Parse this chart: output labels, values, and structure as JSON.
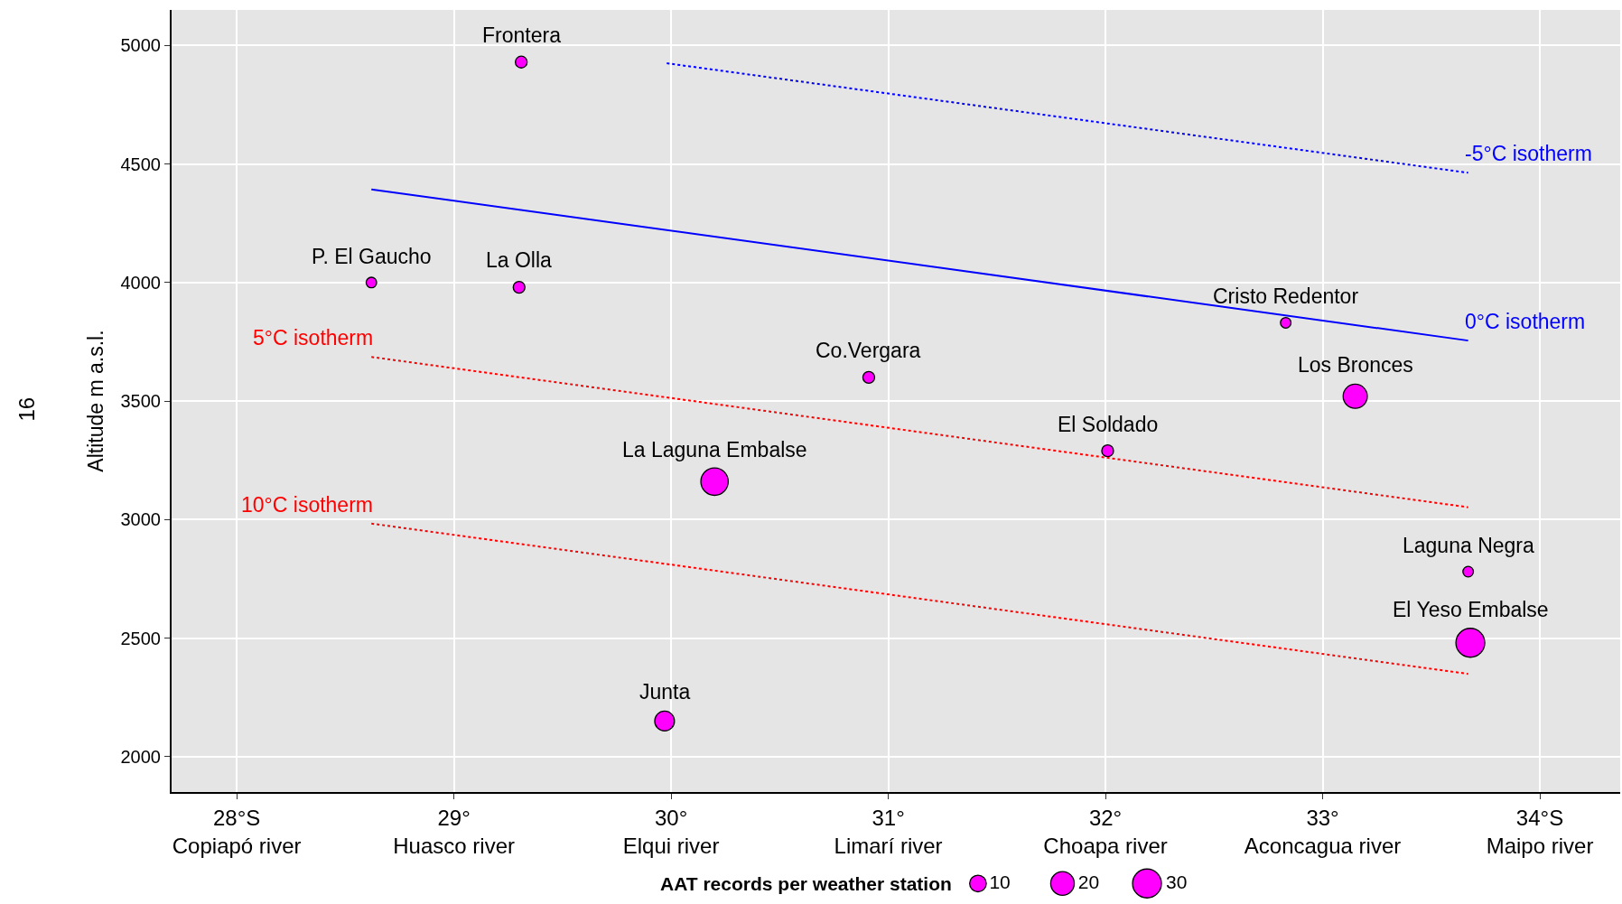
{
  "chart_data": {
    "type": "bubble",
    "ylabel": "Altitude m a.s.l.",
    "legend_title": "AAT records per weather station",
    "x": [
      29.31,
      28.62,
      29.3,
      30.91,
      32.83,
      33.15,
      32.01,
      30.2,
      33.67,
      33.68,
      29.97
    ],
    "series": [
      {
        "color": "#ff00ff",
        "values": [
          4930,
          4000,
          3980,
          3600,
          3830,
          3520,
          3290,
          3160,
          2780,
          2480,
          2150
        ],
        "sizes": [
          5,
          4,
          5,
          5,
          4,
          21,
          5,
          27,
          4,
          30,
          14
        ]
      },
      {
        "type": "line",
        "name": "-5°C isotherm",
        "color": "#0000ff",
        "line_style": "dotted",
        "x": [
          29.98,
          33.67
        ],
        "values": [
          4925,
          4463
        ]
      },
      {
        "type": "line",
        "name": "0°C isotherm",
        "color": "#0000ff",
        "line_style": "solid",
        "x": [
          28.62,
          33.67
        ],
        "values": [
          4393,
          3755
        ]
      },
      {
        "type": "line",
        "name": "5°C isotherm",
        "color": "#ff0000",
        "line_style": "dotted",
        "x": [
          28.62,
          33.67
        ],
        "values": [
          3686,
          3052
        ]
      },
      {
        "type": "line",
        "name": "10°C isotherm",
        "color": "#ff0000",
        "line_style": "dotted",
        "x": [
          28.62,
          33.67
        ],
        "values": [
          2983,
          2349
        ]
      }
    ],
    "size_legend": [
      10,
      20,
      30
    ],
    "annotations": [
      {
        "text": "Frontera",
        "x": 29.31,
        "y": 4930
      },
      {
        "text": "P. El Gaucho",
        "x": 28.62,
        "y": 4000
      },
      {
        "text": "La Olla",
        "x": 29.3,
        "y": 3980
      },
      {
        "text": "Co.Vergara",
        "x": 30.91,
        "y": 3600
      },
      {
        "text": "Cristo Redentor",
        "x": 32.83,
        "y": 3830
      },
      {
        "text": "Los Bronces",
        "x": 33.15,
        "y": 3520
      },
      {
        "text": "El Soldado",
        "x": 32.01,
        "y": 3290
      },
      {
        "text": "La Laguna Embalse",
        "x": 30.2,
        "y": 3160
      },
      {
        "text": "Laguna Negra",
        "x": 33.67,
        "y": 2780
      },
      {
        "text": "El Yeso Embalse",
        "x": 33.68,
        "y": 2480
      },
      {
        "text": "Junta",
        "x": 29.97,
        "y": 2150
      },
      "16"
    ],
    "xlim": [
      27.7,
      34.37
    ],
    "xticks": [
      {
        "value": 28,
        "label": "28°S\nCopiapó river"
      },
      {
        "value": 29,
        "label": "29°\nHuasco river"
      },
      {
        "value": 30,
        "label": "30°\nElqui river"
      },
      {
        "value": 31,
        "label": "31°\nLimarí river"
      },
      {
        "value": 32,
        "label": "32°\nChoapa river"
      },
      {
        "value": 33,
        "label": "33°\nAconcagua river"
      },
      {
        "value": 34,
        "label": "34°S\nMaipo river"
      }
    ],
    "ylim": [
      1850,
      5150
    ],
    "yticks": [
      2000,
      2500,
      3000,
      3500,
      4000,
      4500,
      5000
    ],
    "grid": true
  }
}
